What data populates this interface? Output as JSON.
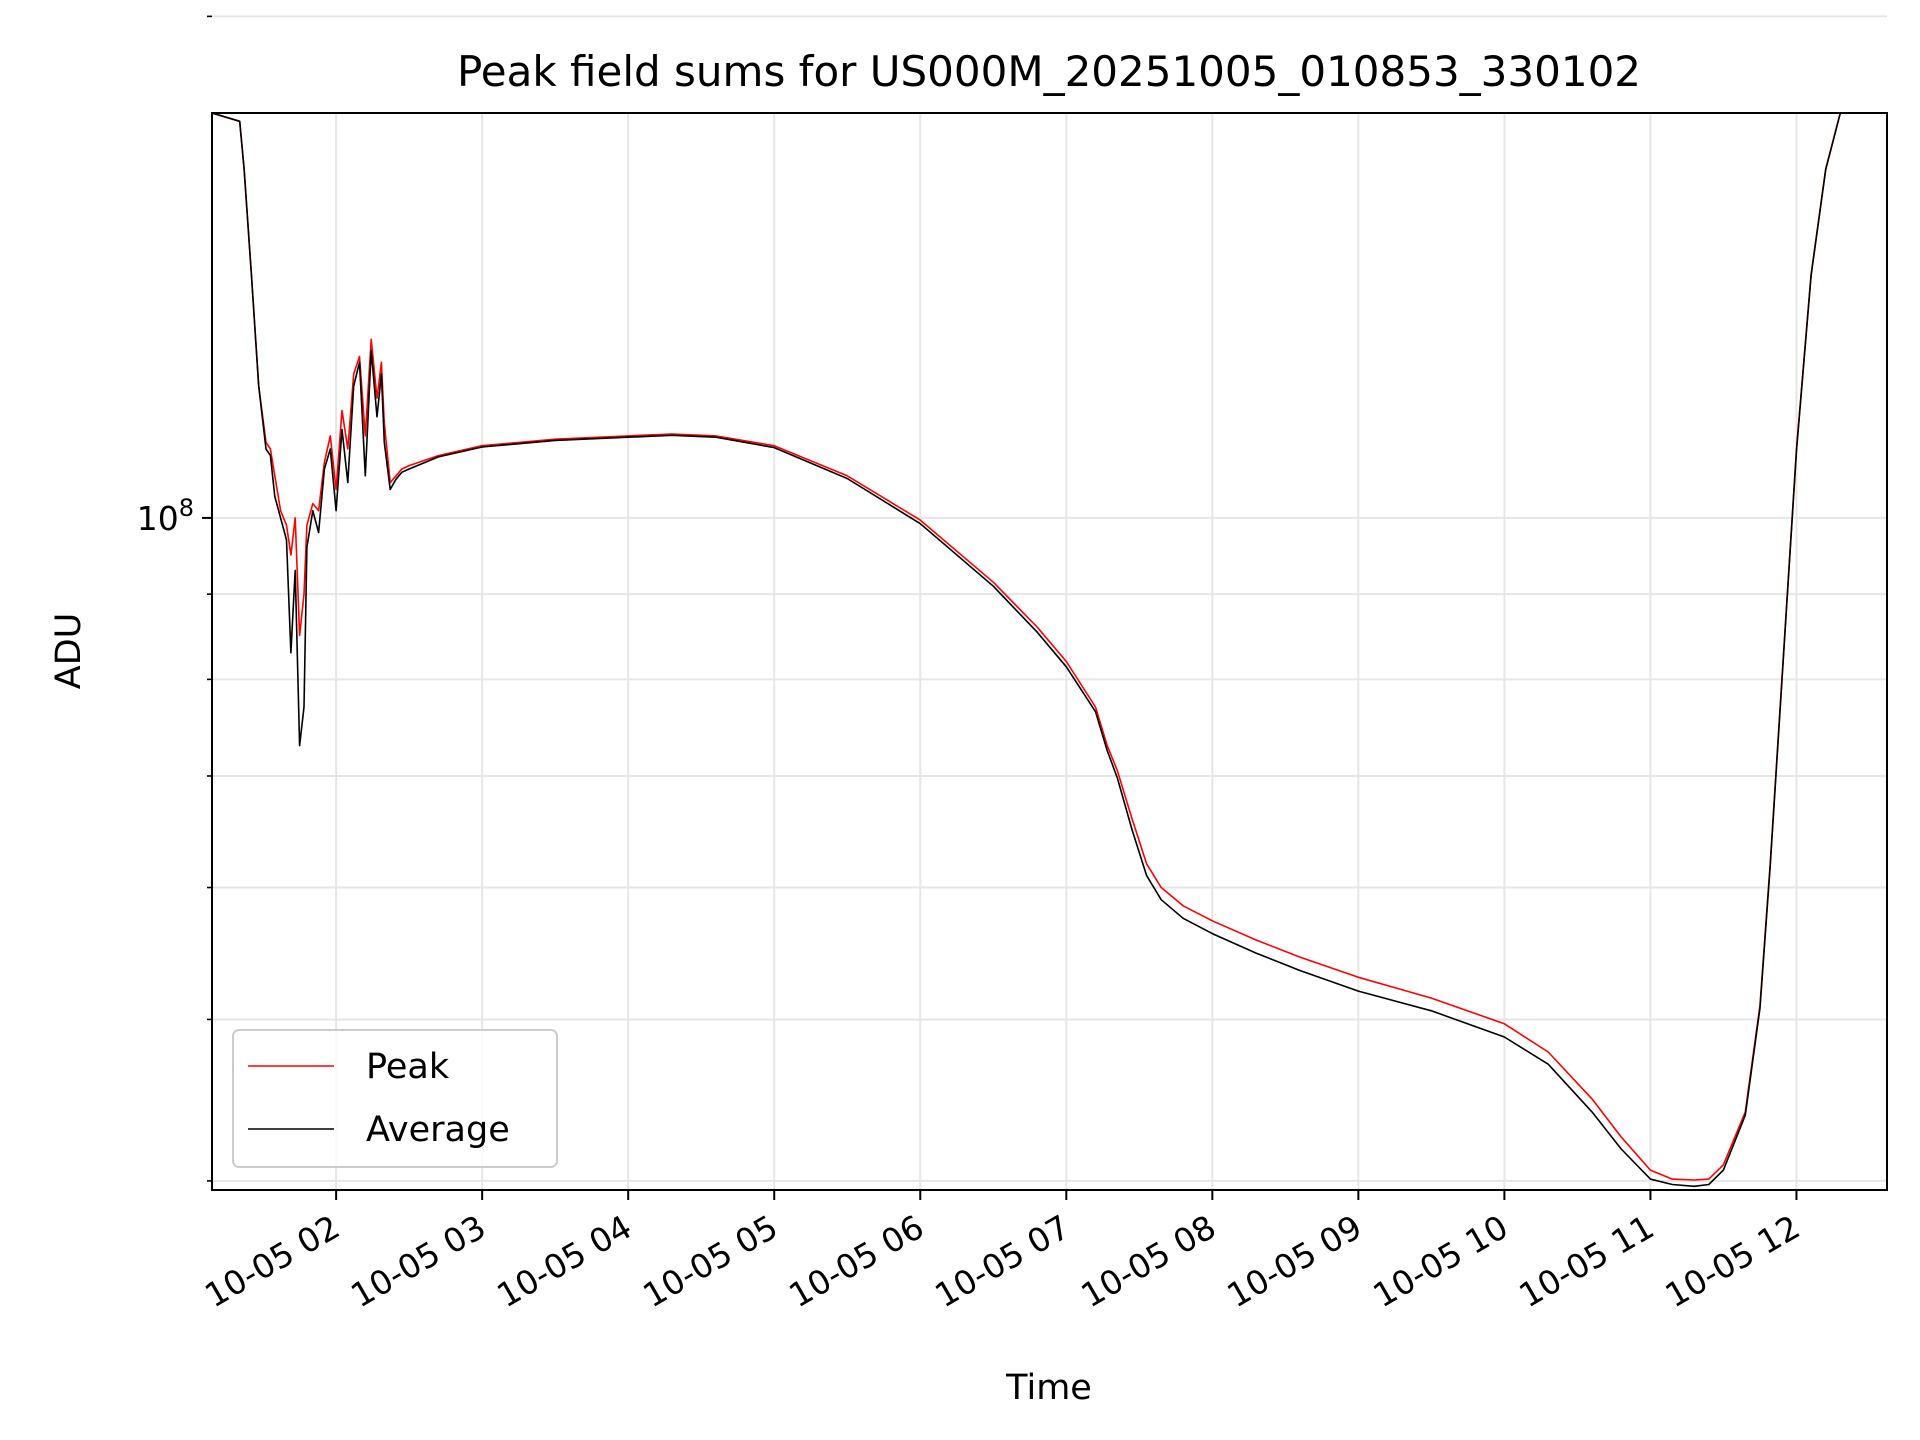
{
  "chart_data": {
    "type": "line",
    "title": "Peak field sums for US000M_20251005_010853_330102",
    "xlabel": "Time",
    "ylabel": "ADU",
    "yscale": "log",
    "grid": true,
    "legend_position": "lower-left",
    "xlim": [
      1.15,
      12.62
    ],
    "ylim": [
      39500000,
      175000000
    ],
    "x_unit": "hours after 2025-10-05 00:00",
    "x_ticks": [
      {
        "value": 2,
        "label": "10-05 02"
      },
      {
        "value": 3,
        "label": "10-05 03"
      },
      {
        "value": 4,
        "label": "10-05 04"
      },
      {
        "value": 5,
        "label": "10-05 05"
      },
      {
        "value": 6,
        "label": "10-05 06"
      },
      {
        "value": 7,
        "label": "10-05 07"
      },
      {
        "value": 8,
        "label": "10-05 08"
      },
      {
        "value": 9,
        "label": "10-05 09"
      },
      {
        "value": 10,
        "label": "10-05 10"
      },
      {
        "value": 11,
        "label": "10-05 11"
      },
      {
        "value": 12,
        "label": "10-05 12"
      }
    ],
    "y_major_tick": {
      "value": 100000000,
      "base": "10",
      "exp": "8"
    },
    "y_minor_ticks": [
      40000000,
      50000000,
      60000000,
      70000000,
      80000000,
      90000000,
      200000000
    ],
    "series": [
      {
        "name": "Peak",
        "color": "#ff0000",
        "x": [
          1.15,
          1.34,
          1.37,
          1.42,
          1.47,
          1.52,
          1.55,
          1.58,
          1.62,
          1.66,
          1.69,
          1.72,
          1.75,
          1.78,
          1.8,
          1.84,
          1.88,
          1.92,
          1.96,
          2.0,
          2.04,
          2.08,
          2.12,
          2.16,
          2.2,
          2.24,
          2.28,
          2.31,
          2.33,
          2.37,
          2.41,
          2.45,
          2.5,
          2.7,
          3.0,
          3.5,
          4.0,
          4.3,
          4.6,
          5.0,
          5.5,
          6.0,
          6.5,
          6.8,
          7.0,
          7.2,
          7.28,
          7.35,
          7.45,
          7.55,
          7.65,
          7.8,
          8.0,
          8.3,
          8.6,
          9.0,
          9.5,
          10.0,
          10.3,
          10.6,
          10.8,
          11.0,
          11.15,
          11.3,
          11.4,
          11.5,
          11.65,
          11.75,
          11.82,
          11.9,
          12.0,
          12.1,
          12.2,
          12.3,
          12.4,
          12.45
        ],
        "y": [
          175000000,
          173000000,
          162000000,
          140000000,
          120000000,
          111000000,
          110000000,
          106000000,
          101000000,
          99000000,
          95000000,
          100000000,
          85000000,
          90000000,
          99000000,
          102000000,
          101000000,
          108000000,
          112000000,
          104000000,
          116000000,
          110000000,
          122000000,
          125000000,
          112000000,
          128000000,
          118000000,
          124000000,
          114000000,
          105000000,
          106000000,
          107000000,
          107500000,
          109000000,
          110500000,
          111500000,
          112000000,
          112300000,
          112000000,
          110500000,
          106000000,
          99700000,
          91500000,
          86000000,
          82000000,
          77000000,
          73000000,
          70500000,
          66000000,
          62000000,
          60000000,
          58500000,
          57300000,
          55800000,
          54500000,
          53000000,
          51500000,
          49700000,
          47800000,
          44800000,
          42500000,
          40600000,
          40100000,
          40050000,
          40100000,
          40900000,
          44000000,
          51000000,
          62000000,
          80000000,
          110000000,
          140000000,
          162000000,
          175000000,
          176000000,
          176000000
        ]
      },
      {
        "name": "Average",
        "color": "#000000",
        "x": [
          1.15,
          1.34,
          1.37,
          1.42,
          1.47,
          1.52,
          1.55,
          1.58,
          1.62,
          1.66,
          1.69,
          1.72,
          1.75,
          1.78,
          1.8,
          1.84,
          1.88,
          1.92,
          1.96,
          2.0,
          2.04,
          2.08,
          2.12,
          2.16,
          2.2,
          2.24,
          2.28,
          2.31,
          2.33,
          2.37,
          2.41,
          2.45,
          2.5,
          2.7,
          3.0,
          3.5,
          4.0,
          4.3,
          4.6,
          5.0,
          5.5,
          6.0,
          6.5,
          6.8,
          7.0,
          7.2,
          7.28,
          7.35,
          7.45,
          7.55,
          7.65,
          7.8,
          8.0,
          8.3,
          8.6,
          9.0,
          9.5,
          10.0,
          10.3,
          10.6,
          10.8,
          11.0,
          11.15,
          11.3,
          11.4,
          11.5,
          11.65,
          11.75,
          11.82,
          11.9,
          12.0,
          12.1,
          12.2,
          12.3,
          12.4,
          12.45
        ],
        "y": [
          175000000,
          173000000,
          162000000,
          140000000,
          120000000,
          110000000,
          109000000,
          103000000,
          100000000,
          97000000,
          83000000,
          93000000,
          73000000,
          77000000,
          96000000,
          101000000,
          98000000,
          107000000,
          110000000,
          101000000,
          113000000,
          105000000,
          120000000,
          124000000,
          106000000,
          126000000,
          115000000,
          122000000,
          111000000,
          104000000,
          105500000,
          106500000,
          107000000,
          108800000,
          110300000,
          111300000,
          111800000,
          112100000,
          111800000,
          110200000,
          105600000,
          99200000,
          91000000,
          85400000,
          81400000,
          76500000,
          72500000,
          69800000,
          65000000,
          61000000,
          59000000,
          57500000,
          56300000,
          54800000,
          53500000,
          52000000,
          50600000,
          48800000,
          47000000,
          44000000,
          41800000,
          40100000,
          39800000,
          39700000,
          39800000,
          40600000,
          43800000,
          50800000,
          61800000,
          79800000,
          109800000,
          139800000,
          161800000,
          175000000,
          176000000,
          176000000
        ]
      }
    ]
  }
}
